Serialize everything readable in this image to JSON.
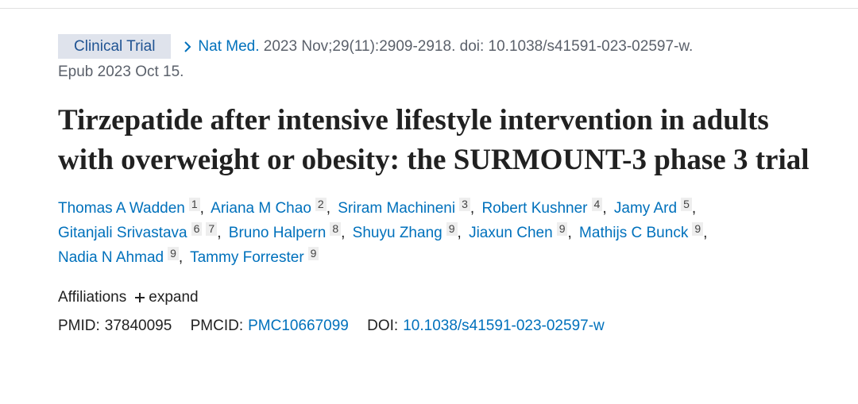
{
  "header": {
    "badge": "Clinical Trial",
    "journal": "Nat Med.",
    "details": "2023 Nov;29(11):2909-2918. doi: 10.1038/s41591-023-02597-w.",
    "epub": "Epub 2023 Oct 15."
  },
  "title": "Tirzepatide after intensive lifestyle intervention in adults with overweight or obesity: the SURMOUNT-3 phase 3 trial",
  "authors": [
    {
      "name": "Thomas A Wadden",
      "affiliations": [
        "1"
      ]
    },
    {
      "name": "Ariana M Chao",
      "affiliations": [
        "2"
      ]
    },
    {
      "name": "Sriram Machineni",
      "affiliations": [
        "3"
      ]
    },
    {
      "name": "Robert Kushner",
      "affiliations": [
        "4"
      ]
    },
    {
      "name": "Jamy Ard",
      "affiliations": [
        "5"
      ]
    },
    {
      "name": "Gitanjali Srivastava",
      "affiliations": [
        "6",
        "7"
      ]
    },
    {
      "name": "Bruno Halpern",
      "affiliations": [
        "8"
      ]
    },
    {
      "name": "Shuyu Zhang",
      "affiliations": [
        "9"
      ]
    },
    {
      "name": "Jiaxun Chen",
      "affiliations": [
        "9"
      ]
    },
    {
      "name": "Mathijs C Bunck",
      "affiliations": [
        "9"
      ]
    },
    {
      "name": "Nadia N Ahmad",
      "affiliations": [
        "9"
      ]
    },
    {
      "name": "Tammy Forrester",
      "affiliations": [
        "9"
      ]
    }
  ],
  "affiliations": {
    "label": "Affiliations",
    "toggle": "expand"
  },
  "ids": {
    "pmid_label": "PMID:",
    "pmid": "37840095",
    "pmcid_label": "PMCID:",
    "pmcid": "PMC10667099",
    "doi_label": "DOI:",
    "doi": "10.1038/s41591-023-02597-w"
  }
}
